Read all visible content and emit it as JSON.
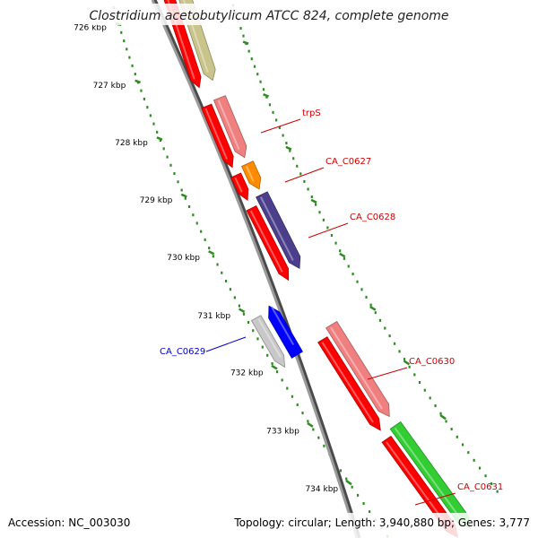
{
  "title": "Clostridium acetobutylicum ATCC 824, complete genome",
  "footer": {
    "accession": "Accession: NC_003030",
    "summary": "Topology: circular; Length: 3,940,880 bp; Genes: 3,777"
  },
  "colors": {
    "backbone": "#808080",
    "tick_green": "#2e8b22",
    "cds_red": "#ff0000",
    "label_red": "#cc0000",
    "label_blue": "#0000cc"
  },
  "ticks": [
    {
      "label": "726 kbp",
      "major": true
    },
    {
      "label": "727 kbp",
      "major": true
    },
    {
      "label": "728 kbp",
      "major": true
    },
    {
      "label": "729 kbp",
      "major": true
    },
    {
      "label": "730 kbp",
      "major": true
    },
    {
      "label": "731 kbp",
      "major": true
    },
    {
      "label": "732 kbp",
      "major": true
    },
    {
      "label": "733 kbp",
      "major": true
    },
    {
      "label": "734 kbp",
      "major": true
    }
  ],
  "genes": [
    {
      "label": "",
      "color": "#c9c48b",
      "strand": "+"
    },
    {
      "label": "trpS",
      "color": "#f08080",
      "strand": "+"
    },
    {
      "label": "CA_C0627",
      "color": "#ff8c00",
      "strand": "+"
    },
    {
      "label": "CA_C0628",
      "color": "#4b3f8c",
      "strand": "+"
    },
    {
      "label": "CA_C0629",
      "color": "#0000ff",
      "strand": "-"
    },
    {
      "label": "CA_C0630",
      "color": "#f08080",
      "strand": "+"
    },
    {
      "label": "CA_C0631",
      "color": "#32cd32",
      "strand": "+"
    }
  ]
}
